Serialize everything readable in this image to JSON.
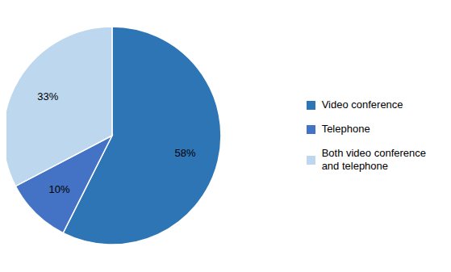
{
  "chart_data": {
    "type": "pie",
    "categories": [
      "Video conference",
      "Telephone",
      "Both video conference\nand telephone"
    ],
    "values": [
      58,
      10,
      33
    ],
    "value_labels": [
      "58%",
      "10%",
      "33%"
    ],
    "colors": [
      "#2E75B6",
      "#4472C4",
      "#BDD7EE"
    ],
    "data_labels": true,
    "legend": "right"
  }
}
